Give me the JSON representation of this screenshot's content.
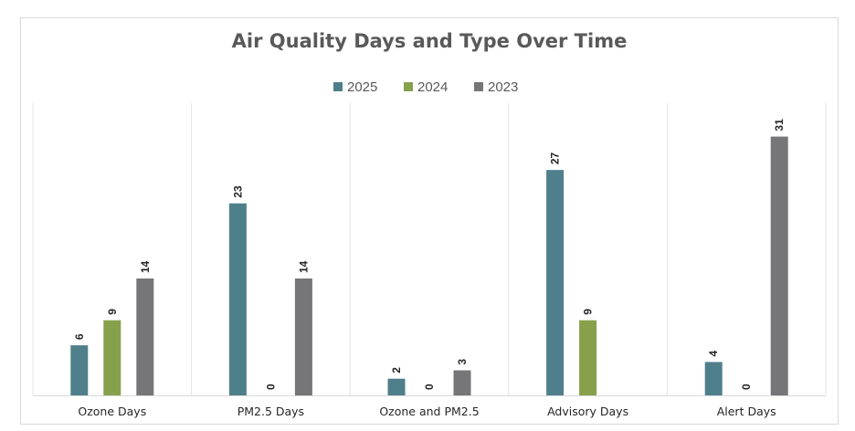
{
  "chart_data": {
    "type": "bar",
    "title": "Air Quality Days and Type Over Time",
    "categories": [
      "Ozone Days",
      "PM2.5 Days",
      "Ozone and PM2.5",
      "Advisory Days",
      "Alert Days"
    ],
    "series": [
      {
        "name": "2025",
        "color": "#4f7f8a",
        "values": [
          6,
          23,
          2,
          27,
          4
        ],
        "labels": [
          "6",
          "23",
          "2",
          "27",
          "4"
        ]
      },
      {
        "name": "2024",
        "color": "#86a04c",
        "values": [
          9,
          0,
          0,
          9,
          0
        ],
        "labels": [
          "9",
          "0",
          "0",
          "9",
          "0"
        ]
      },
      {
        "name": "2023",
        "color": "#767679",
        "values": [
          14,
          14,
          3,
          null,
          31
        ],
        "labels": [
          "14",
          "14",
          "3",
          "",
          "31"
        ]
      }
    ],
    "ylim": [
      0,
      35
    ],
    "grid": "vertical category separators",
    "legend_position": "top",
    "data_labels": "rotated above bars"
  }
}
